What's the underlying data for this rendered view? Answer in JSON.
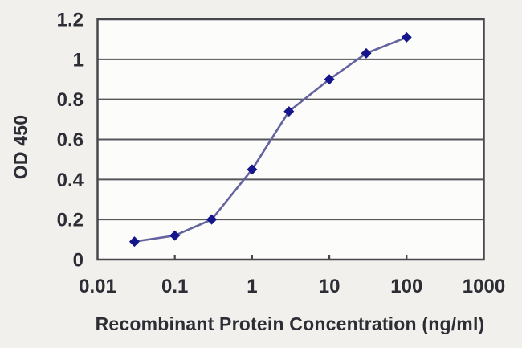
{
  "chart_data": {
    "type": "line",
    "title": "",
    "xlabel": "Recombinant Protein Concentration (ng/ml)",
    "ylabel": "OD 450",
    "x_scale": "log10",
    "xlim": [
      0.01,
      1000
    ],
    "ylim": [
      0,
      1.2
    ],
    "x_tick_values": [
      0.01,
      0.1,
      1,
      10,
      100,
      1000
    ],
    "x_tick_labels": [
      "0.01",
      "0.1",
      "1",
      "10",
      "100",
      "1000"
    ],
    "x_tick_marks": [
      0.1,
      1,
      10,
      100
    ],
    "y_tick_values": [
      0,
      0.2,
      0.4,
      0.6,
      0.8,
      1,
      1.2
    ],
    "y_tick_labels": [
      "0",
      "0.2",
      "0.4",
      "0.6",
      "0.8",
      "1",
      "1.2"
    ],
    "grid": "horizontal",
    "legend": "none",
    "series": [
      {
        "name": "OD 450",
        "marker": "diamond",
        "x": [
          0.03,
          0.1,
          0.3,
          1,
          3,
          10,
          30,
          100
        ],
        "y": [
          0.09,
          0.12,
          0.2,
          0.45,
          0.74,
          0.9,
          1.03,
          1.11
        ]
      }
    ],
    "colors": {
      "line": "#63639f",
      "marker": "#16168c",
      "grid": "#55555a",
      "axis_border": "#47474c",
      "tick_text": "#2d2d35",
      "plot_background": "#fcfcfa",
      "page_background": "#f2f0ed"
    }
  }
}
